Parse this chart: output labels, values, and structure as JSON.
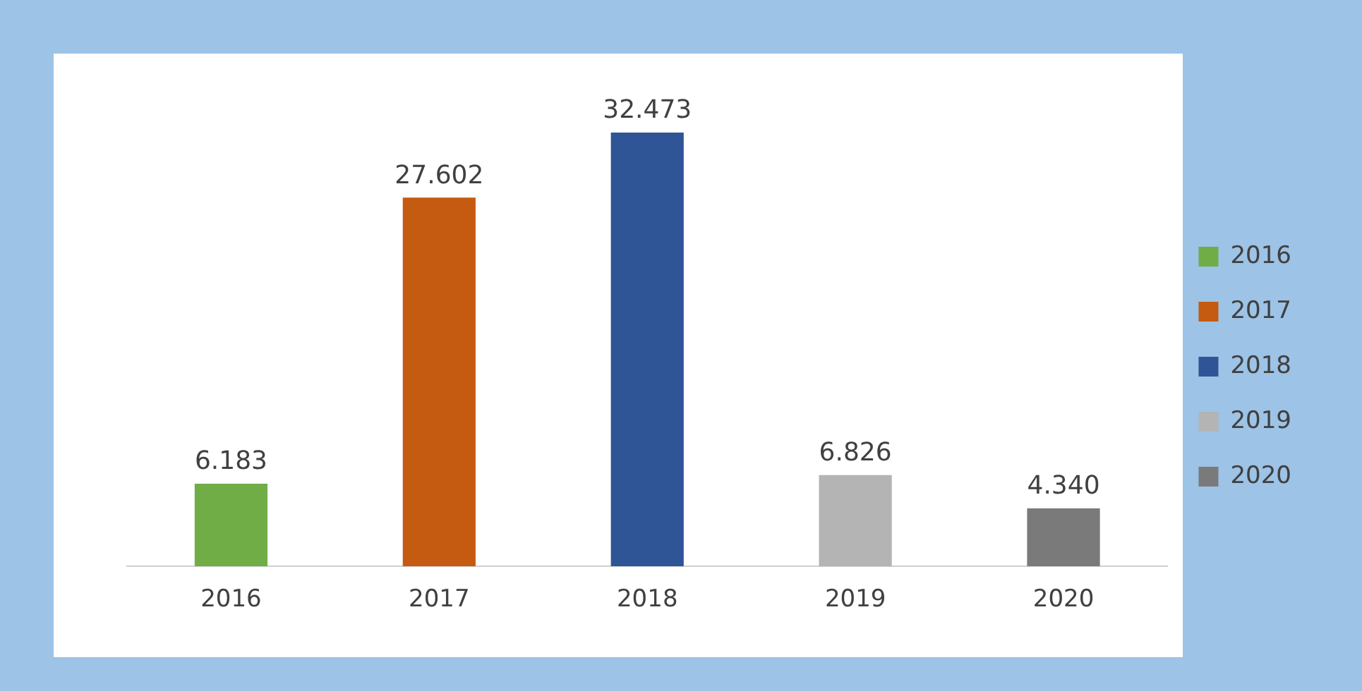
{
  "chart_data": {
    "type": "bar",
    "categories": [
      "2016",
      "2017",
      "2018",
      "2019",
      "2020"
    ],
    "series": [
      {
        "name": "2016",
        "color": "#70ad47",
        "values": [
          6.183,
          null,
          null,
          null,
          null
        ],
        "value_labels": [
          "6.183",
          null,
          null,
          null,
          null
        ]
      },
      {
        "name": "2017",
        "color": "#c55a11",
        "values": [
          null,
          27.602,
          null,
          null,
          null
        ],
        "value_labels": [
          null,
          "27.602",
          null,
          null,
          null
        ]
      },
      {
        "name": "2018",
        "color": "#2f5597",
        "values": [
          null,
          null,
          32.473,
          null,
          null
        ],
        "value_labels": [
          null,
          null,
          "32.473",
          null,
          null
        ]
      },
      {
        "name": "2019",
        "color": "#b4b4b4",
        "values": [
          null,
          null,
          null,
          6.826,
          null
        ],
        "value_labels": [
          null,
          null,
          null,
          "6.826",
          null
        ]
      },
      {
        "name": "2020",
        "color": "#7a7a7a",
        "values": [
          null,
          null,
          null,
          null,
          4.34
        ],
        "value_labels": [
          null,
          null,
          null,
          null,
          "4.340"
        ]
      }
    ],
    "legend": "right",
    "tick_labels": "x",
    "grid": false
  }
}
